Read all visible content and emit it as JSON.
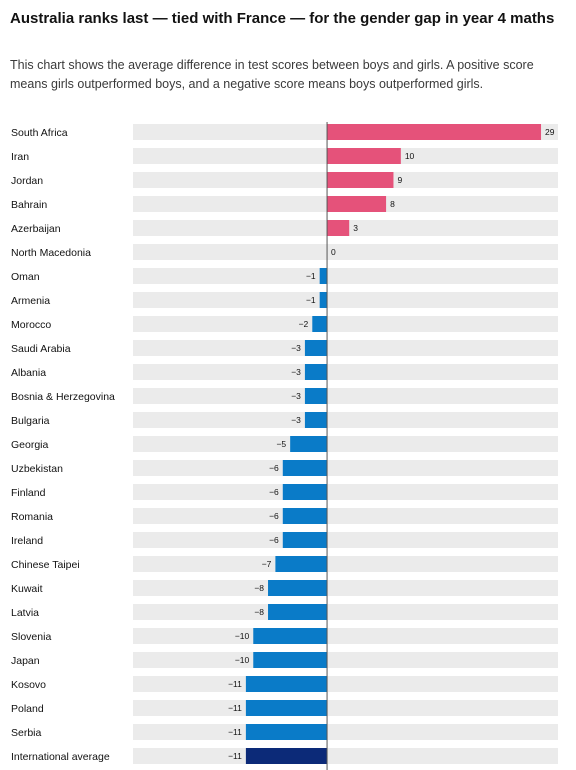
{
  "title": "Australia ranks last — tied with France — for the gender gap in year 4 maths",
  "subtitle": "This chart shows the average difference in test scores between boys and girls. A positive score means girls outperformed boys, and a negative score means boys outperformed girls.",
  "colors": {
    "positive": "#e5527a",
    "negative": "#0a7bc8",
    "average": "#0c2a78",
    "track": "#ebebeb",
    "zero_line": "#555555"
  },
  "chart_data": {
    "type": "bar",
    "orientation": "horizontal",
    "categories": [
      "South Africa",
      "Iran",
      "Jordan",
      "Bahrain",
      "Azerbaijan",
      "North Macedonia",
      "Oman",
      "Armenia",
      "Morocco",
      "Saudi Arabia",
      "Albania",
      "Bosnia & Herzegovina",
      "Bulgaria",
      "Georgia",
      "Uzbekistan",
      "Finland",
      "Romania",
      "Ireland",
      "Chinese Taipei",
      "Kuwait",
      "Latvia",
      "Slovenia",
      "Japan",
      "Kosovo",
      "Poland",
      "Serbia",
      "International average"
    ],
    "values": [
      29,
      10,
      9,
      8,
      3,
      0,
      -1,
      -1,
      -2,
      -3,
      -3,
      -3,
      -3,
      -5,
      -6,
      -6,
      -6,
      -6,
      -7,
      -8,
      -8,
      -10,
      -10,
      -11,
      -11,
      -11,
      -11
    ],
    "value_labels": [
      "29",
      "10",
      "9",
      "8",
      "3",
      "0",
      "−1",
      "−1",
      "−2",
      "−3",
      "−3",
      "−3",
      "−3",
      "−5",
      "−6",
      "−6",
      "−6",
      "−6",
      "−7",
      "−8",
      "−8",
      "−10",
      "−10",
      "−11",
      "−11",
      "−11",
      "−11"
    ],
    "highlight_category": "International average",
    "xlim": [
      -26.3,
      31.3
    ],
    "grid": false
  }
}
